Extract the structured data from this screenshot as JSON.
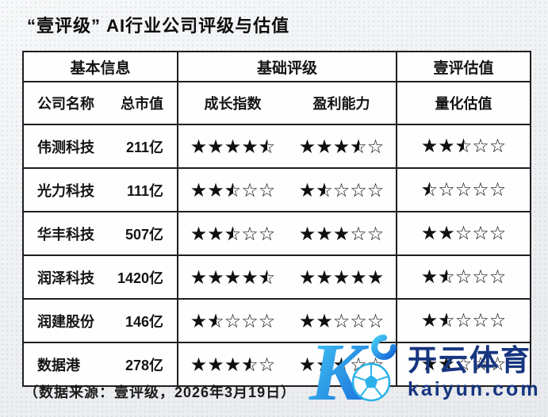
{
  "page": {
    "title": "“壹评级” AI行业公司评级与估值",
    "source_note": "（数据来源：壹评级，2026年3月19日）"
  },
  "table": {
    "group_basic": "基本信息",
    "group_rating": "基础评级",
    "group_valuation": "壹评估值",
    "col_company": "公司名称",
    "col_cap": "总市值",
    "col_growth": "成长指数",
    "col_profit": "盈利能力",
    "col_valuation": "量化估值"
  },
  "chart_data": {
    "type": "table",
    "title": "“壹评级” AI行业公司评级与估值",
    "column_groups": [
      "基本信息",
      "基础评级",
      "壹评估值"
    ],
    "columns": [
      "公司名称",
      "总市值",
      "成长指数",
      "盈利能力",
      "量化估值"
    ],
    "star_scale": 5,
    "rows": [
      {
        "company": "伟测科技",
        "market_cap": "211亿",
        "growth_stars": 4.5,
        "profit_stars": 3.5,
        "valuation_stars": 2.5
      },
      {
        "company": "光力科技",
        "market_cap": "111亿",
        "growth_stars": 2.5,
        "profit_stars": 1.5,
        "valuation_stars": 0.5
      },
      {
        "company": "华丰科技",
        "market_cap": "507亿",
        "growth_stars": 2.5,
        "profit_stars": 3,
        "valuation_stars": 2
      },
      {
        "company": "润泽科技",
        "market_cap": "1420亿",
        "growth_stars": 4.5,
        "profit_stars": 5,
        "valuation_stars": 1.5
      },
      {
        "company": "润建股份",
        "market_cap": "146亿",
        "growth_stars": 1.5,
        "profit_stars": 2,
        "valuation_stars": 1.5
      },
      {
        "company": "数据港",
        "market_cap": "278亿",
        "growth_stars": 3.5,
        "profit_stars": 2.5,
        "valuation_stars": 2
      }
    ],
    "source": "（数据来源：壹评级，2026年3月19日）"
  },
  "watermark": {
    "brand_cn": "开云体育",
    "brand_domain": "kaiyun.com",
    "logo_letter": "K",
    "colors": {
      "logo_start": "#45cdf5",
      "logo_end": "#1565d8",
      "text": "#16357f"
    }
  }
}
